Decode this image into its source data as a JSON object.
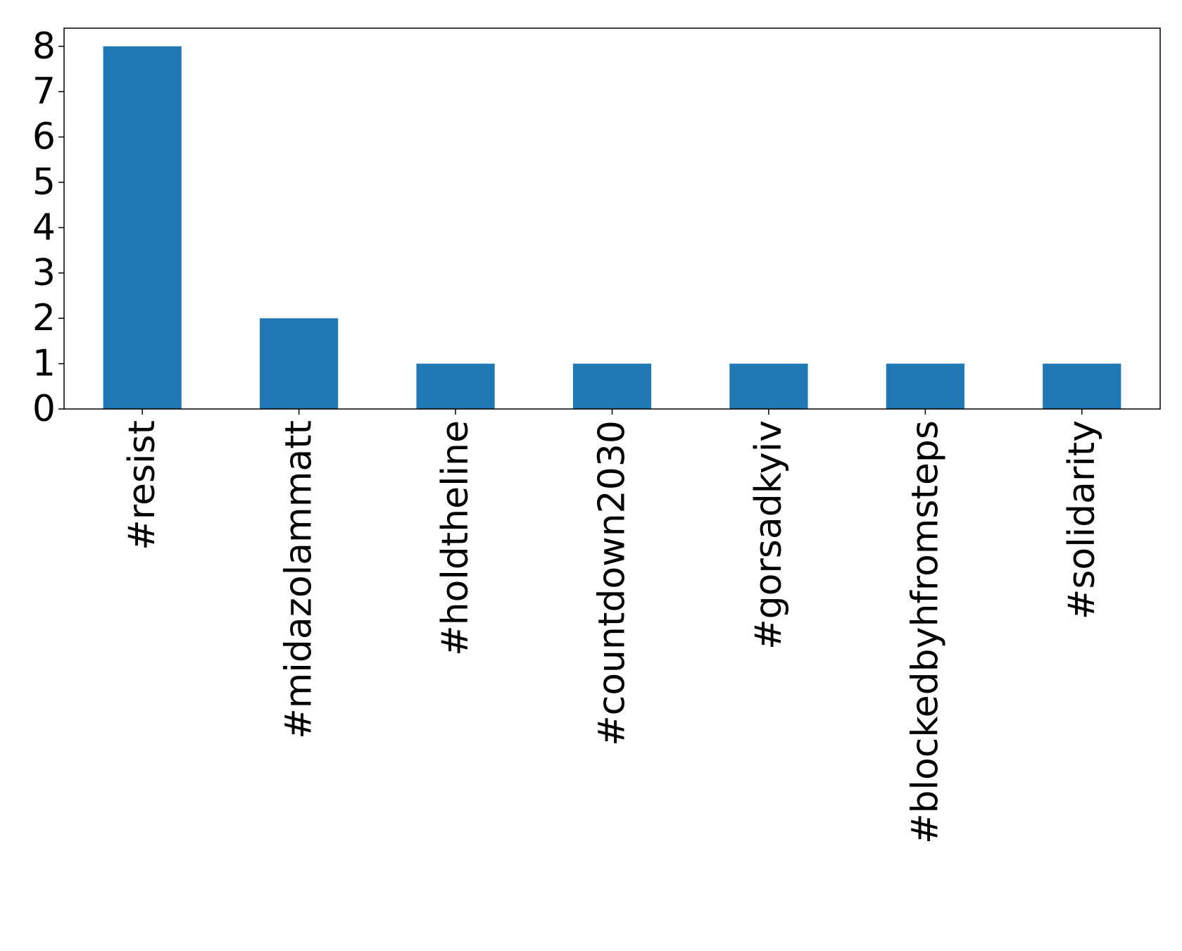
{
  "chart_data": {
    "type": "bar",
    "categories": [
      "#resist",
      "#midazolammatt",
      "#holdtheline",
      "#countdown2030",
      "#gorsadkyiv",
      "#blockedbyhfromsteps",
      "#solidarity"
    ],
    "values": [
      8,
      2,
      1,
      1,
      1,
      1,
      1
    ],
    "color": "#1f77b4",
    "ylim": [
      0,
      8.4
    ],
    "yticks": [
      0,
      1,
      2,
      3,
      4,
      5,
      6,
      7,
      8
    ],
    "grid": false
  }
}
